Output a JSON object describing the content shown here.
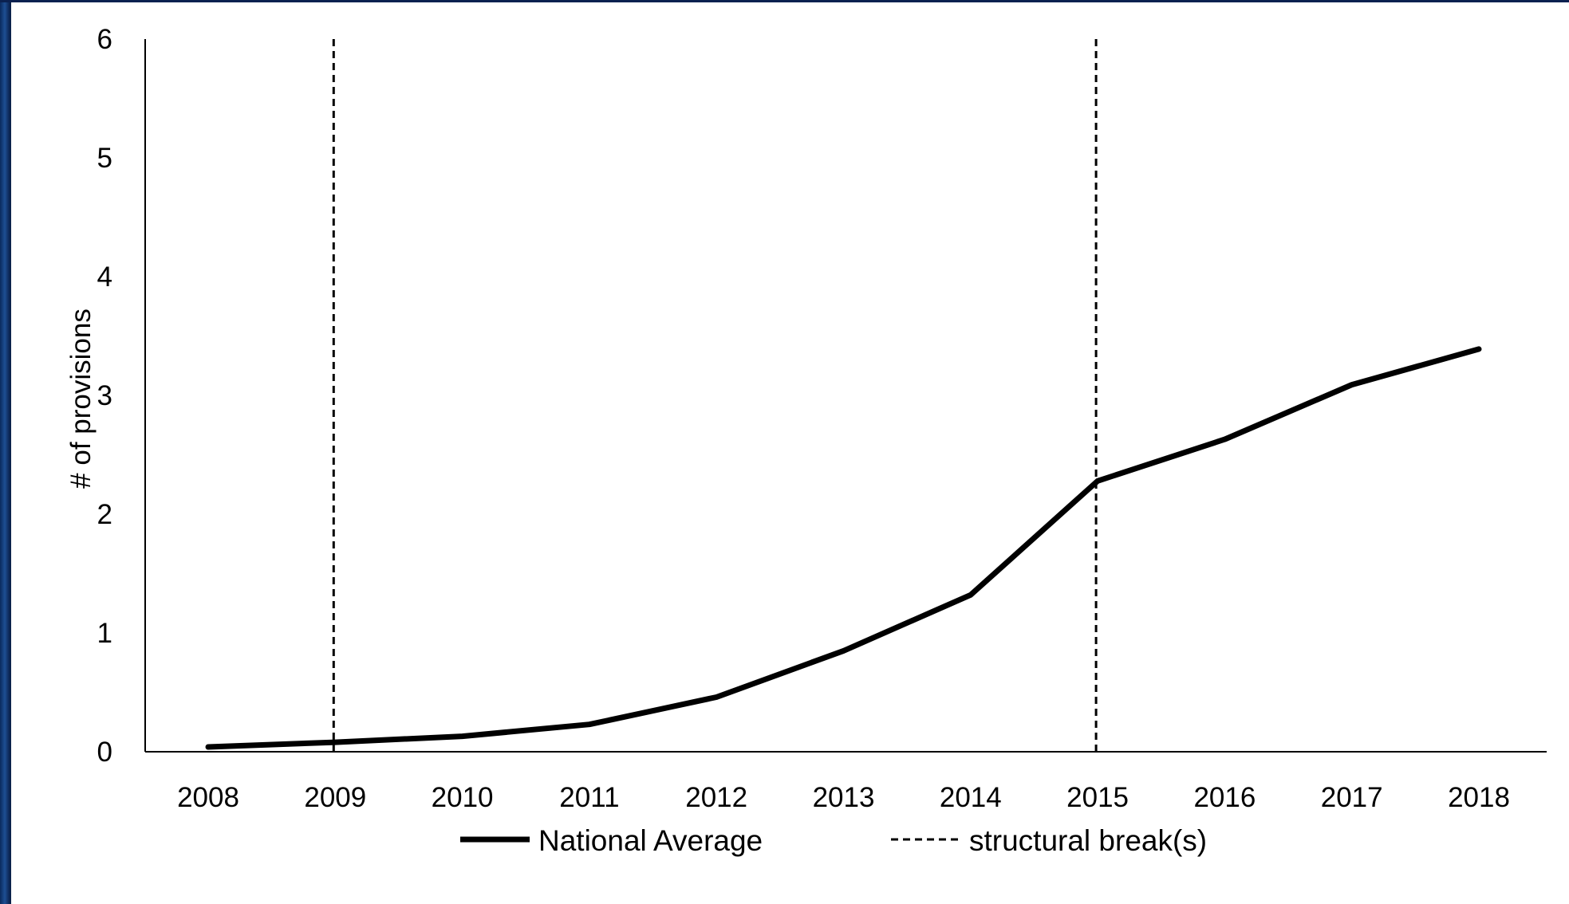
{
  "chart_data": {
    "type": "line",
    "title": "",
    "xlabel": "",
    "ylabel": "# of provisions",
    "x": [
      "2008",
      "2009",
      "2010",
      "2011",
      "2012",
      "2013",
      "2014",
      "2015",
      "2016",
      "2017",
      "2018"
    ],
    "y_ticks": [
      "0",
      "1",
      "2",
      "3",
      "4",
      "5",
      "6"
    ],
    "ylim": [
      0,
      6
    ],
    "grid": false,
    "legend_position": "bottom",
    "series": [
      {
        "name": "National Average",
        "values": [
          0.04,
          0.08,
          0.13,
          0.23,
          0.46,
          0.85,
          1.32,
          2.28,
          2.63,
          3.09,
          3.39
        ],
        "style": "solid",
        "color": "#000000"
      }
    ],
    "structural_breaks": {
      "name": "structural break(s)",
      "x": [
        "2009",
        "2015"
      ],
      "style": "dashed",
      "color": "#000000"
    }
  }
}
